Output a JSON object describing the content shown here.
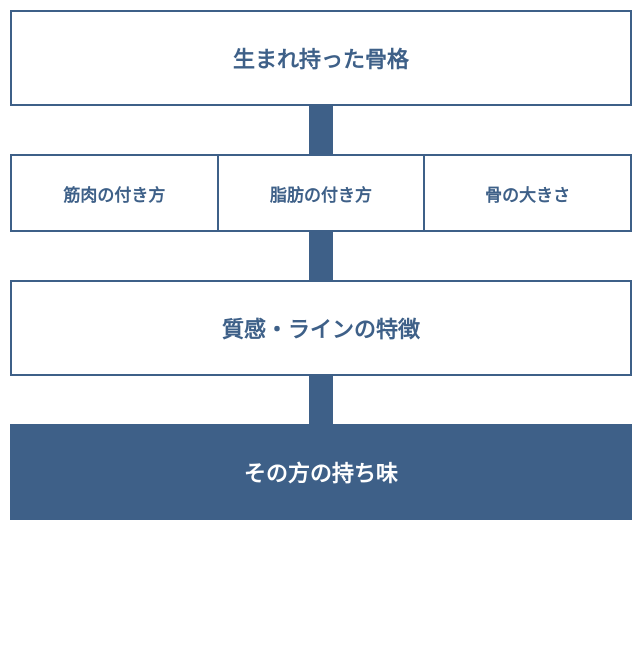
{
  "diagram": {
    "type": "flowchart",
    "background_color": "#ffffff",
    "border_color": "#3e6088",
    "border_width": 2,
    "text_color": "#3e6088",
    "filled_bg_color": "#3e6088",
    "filled_text_color": "#ffffff",
    "connector_color": "#3e6088",
    "connector_width": 24,
    "connector_height": 48,
    "box_height_large": 96,
    "box_height_small": 78,
    "fontsize_large": 22,
    "fontsize_small": 17,
    "nodes": {
      "level1": {
        "label": "生まれ持った骨格",
        "style": "outline",
        "size": "large"
      },
      "level2": {
        "items": [
          {
            "label": "筋肉の付き方"
          },
          {
            "label": "脂肪の付き方"
          },
          {
            "label": "骨の大きさ"
          }
        ],
        "style": "outline",
        "size": "small"
      },
      "level3": {
        "label": "質感・ラインの特徴",
        "style": "outline",
        "size": "large"
      },
      "level4": {
        "label": "その方の持ち味",
        "style": "filled",
        "size": "large"
      }
    }
  }
}
